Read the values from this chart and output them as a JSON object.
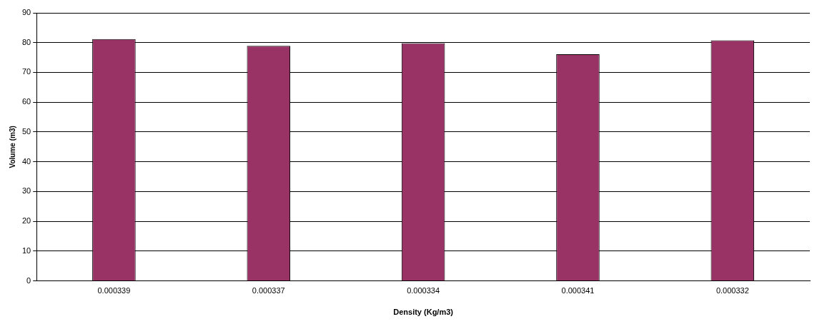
{
  "chart_data": {
    "type": "bar",
    "xlabel": "Density (Kg/m3)",
    "ylabel": "Volume (m3)",
    "categories": [
      "0.000339",
      "0.000337",
      "0.000334",
      "0.000341",
      "0.000332"
    ],
    "values": [
      81.2,
      78.9,
      79.8,
      76.1,
      80.8
    ],
    "color": "#993366",
    "ylim": [
      0,
      90
    ],
    "yticks": [
      0,
      10,
      20,
      30,
      40,
      50,
      60,
      70,
      80,
      90
    ],
    "grid": "y"
  }
}
